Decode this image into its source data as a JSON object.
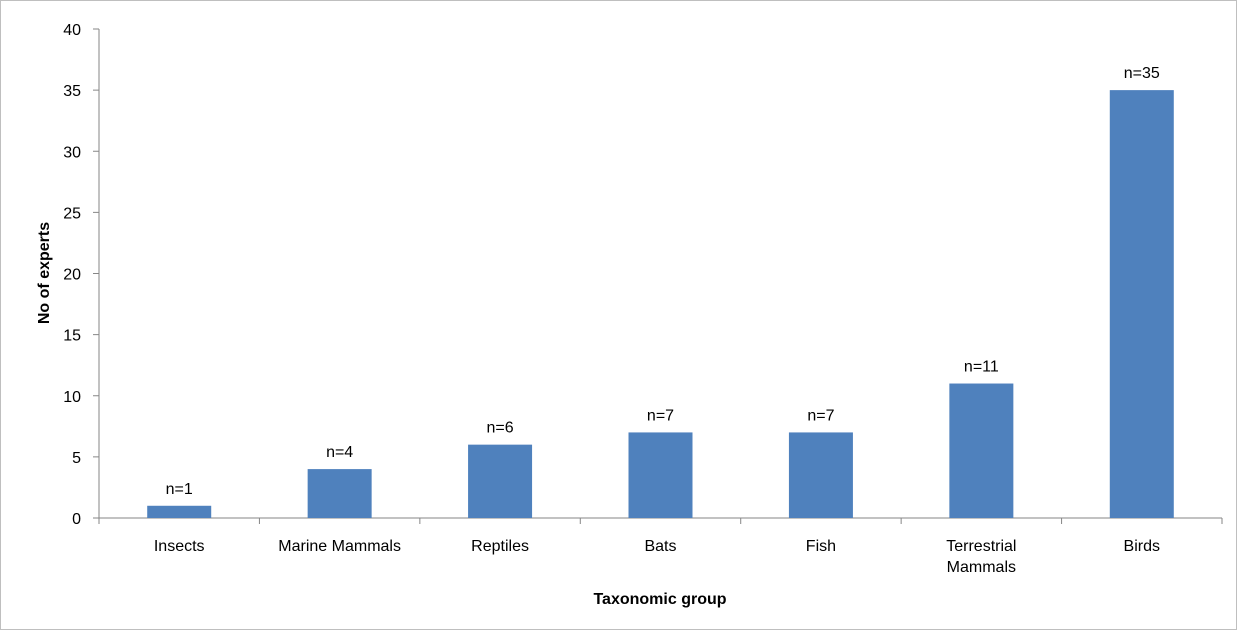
{
  "chart_data": {
    "type": "bar",
    "categories": [
      "Insects",
      "Marine Mammals",
      "Reptiles",
      "Bats",
      "Fish",
      "Terrestrial Mammals",
      "Birds"
    ],
    "category_lines": [
      [
        "Insects"
      ],
      [
        "Marine Mammals"
      ],
      [
        "Reptiles"
      ],
      [
        "Bats"
      ],
      [
        "Fish"
      ],
      [
        "Terrestrial",
        "Mammals"
      ],
      [
        "Birds"
      ]
    ],
    "values": [
      1,
      4,
      6,
      7,
      7,
      11,
      35
    ],
    "data_labels": [
      "n=1",
      "n=4",
      "n=6",
      "n=7",
      "n=7",
      "n=11",
      "n=35"
    ],
    "xlabel": "Taxonomic group",
    "ylabel": "No of experts",
    "ylim": [
      0,
      40
    ],
    "yticks": [
      0,
      5,
      10,
      15,
      20,
      25,
      30,
      35,
      40
    ],
    "grid": false,
    "legend": "none",
    "bar_color": "#4f81bd",
    "axis_color": "#868686"
  }
}
